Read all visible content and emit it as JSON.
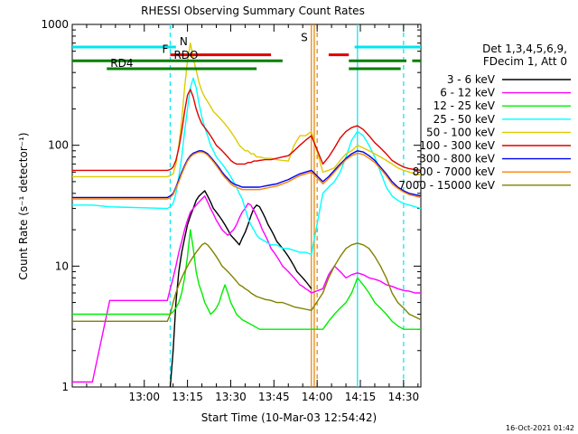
{
  "chart_data": {
    "type": "line",
    "title": "RHESSI Observing Summary Count Rates",
    "xlabel": "Start Time (10-Mar-03 12:54:42)",
    "ylabel": "Count Rate (s⁻¹ detector⁻¹)",
    "ylog": true,
    "ylim": [
      1,
      1000
    ],
    "xlim_minutes": [
      -25,
      96
    ],
    "yticks": [
      1,
      10,
      100,
      1000
    ],
    "ytick_labels": [
      "1",
      "10",
      "100",
      "1000"
    ],
    "xticks": [
      "13:00",
      "13:15",
      "13:30",
      "13:45",
      "14:00",
      "14:15",
      "14:30"
    ],
    "xtick_values": [
      0,
      15,
      30,
      45,
      60,
      75,
      90
    ],
    "legend_header": [
      "Det 1,3,4,5,6,9,",
      "FDecim 1, Att 0"
    ],
    "footer_date": "16-Oct-2021 01:42",
    "flags": [
      {
        "label": "N",
        "color": "#00e5ee",
        "y": 650,
        "segments": [
          [
            -25,
            11
          ],
          [
            73,
            96
          ]
        ]
      },
      {
        "label": "F",
        "color": "#e00000",
        "y": 560,
        "segments": [
          [
            9,
            44
          ],
          [
            64,
            71
          ]
        ]
      },
      {
        "label": "RDO",
        "color": "#008000",
        "y": 500,
        "segments": [
          [
            -25,
            48
          ],
          [
            71,
            91
          ],
          [
            93,
            96
          ]
        ]
      },
      {
        "label": "RD4",
        "color": "#008000",
        "y": 430,
        "segments": [
          [
            -13,
            39
          ],
          [
            71,
            89
          ]
        ]
      },
      {
        "label": "S",
        "color": "#e08000",
        "y": 700,
        "segments": []
      }
    ],
    "vlines": [
      {
        "x": 9,
        "color": "#00e5ee",
        "style": "dashed"
      },
      {
        "x": 58,
        "color": "#e08000",
        "style": "solid"
      },
      {
        "x": 59,
        "color": "#e08000",
        "style": "solid"
      },
      {
        "x": 60,
        "color": "#e08000",
        "style": "dashed"
      },
      {
        "x": 74,
        "color": "#00e5ee",
        "style": "solid"
      },
      {
        "x": 90,
        "color": "#00e5ee",
        "style": "dashed"
      }
    ],
    "series": [
      {
        "name": "3 - 6 keV",
        "color": "#000000",
        "x": [
          9,
          10,
          11,
          12,
          13,
          14,
          15,
          16,
          17,
          18,
          19,
          20,
          21,
          22,
          23,
          24,
          25,
          26,
          27,
          28,
          29,
          30,
          31,
          32,
          33,
          34,
          35,
          36,
          37,
          38,
          39,
          40,
          41,
          42,
          43,
          44,
          45,
          46,
          47,
          48,
          49,
          50,
          51,
          52,
          53,
          54,
          55,
          56,
          57,
          58
        ],
        "y": [
          1,
          2,
          5,
          9,
          13,
          17,
          22,
          26,
          30,
          35,
          38,
          40,
          42,
          38,
          34,
          30,
          28,
          26,
          24,
          22,
          20,
          18,
          17,
          16,
          15,
          17,
          19,
          22,
          26,
          30,
          32,
          31,
          28,
          25,
          22,
          20,
          18,
          16,
          15,
          14,
          13,
          12,
          11,
          10,
          9,
          8.5,
          8,
          7.5,
          7,
          6.5
        ]
      },
      {
        "name": "6 - 12 keV",
        "color": "#ff00ff",
        "x": [
          -25,
          -18,
          -12,
          8,
          9,
          10,
          11,
          12,
          13,
          14,
          15,
          16,
          17,
          18,
          19,
          20,
          21,
          22,
          23,
          24,
          25,
          26,
          27,
          28,
          29,
          30,
          31,
          32,
          33,
          34,
          35,
          36,
          37,
          38,
          39,
          40,
          41,
          42,
          43,
          44,
          45,
          46,
          47,
          48,
          49,
          50,
          51,
          52,
          53,
          54,
          55,
          56,
          57,
          58,
          62,
          64,
          66,
          68,
          70,
          72,
          74,
          76,
          78,
          80,
          82,
          84,
          86,
          88,
          90,
          92,
          94,
          96
        ],
        "y": [
          1.1,
          1.1,
          5.2,
          5.2,
          6.5,
          8,
          10,
          13,
          16,
          20,
          24,
          28,
          30,
          32,
          34,
          36,
          38,
          34,
          30,
          27,
          24,
          22,
          20,
          19,
          18,
          19,
          20,
          22,
          25,
          28,
          30,
          33,
          32,
          29,
          26,
          23,
          20,
          18,
          16,
          14,
          13,
          12,
          11,
          10,
          9.5,
          9,
          8.5,
          8,
          7.5,
          7,
          6.8,
          6.5,
          6.3,
          6,
          6.5,
          8.5,
          10,
          9,
          8,
          8.5,
          8.8,
          8.5,
          8,
          7.8,
          7.5,
          7,
          6.8,
          6.5,
          6.3,
          6.2,
          6,
          6
        ]
      },
      {
        "name": "12 - 25 keV",
        "color": "#00ee00",
        "x": [
          -25,
          -18,
          -12,
          8,
          9,
          10,
          11,
          12,
          13,
          14,
          15,
          16,
          17,
          18,
          19,
          20,
          21,
          22,
          23,
          24,
          25,
          26,
          27,
          28,
          29,
          30,
          31,
          32,
          33,
          34,
          35,
          36,
          37,
          38,
          39,
          40,
          42,
          44,
          46,
          48,
          50,
          52,
          54,
          56,
          58,
          62,
          64,
          66,
          68,
          70,
          72,
          74,
          76,
          78,
          80,
          82,
          84,
          86,
          88,
          90,
          92,
          94,
          96
        ],
        "y": [
          4,
          4,
          4,
          4,
          4,
          4.2,
          4.5,
          5,
          6,
          8,
          12,
          20,
          14,
          9,
          7,
          6,
          5,
          4.5,
          4,
          4.2,
          4.5,
          5,
          6,
          7,
          6,
          5,
          4.5,
          4,
          3.8,
          3.6,
          3.5,
          3.4,
          3.3,
          3.2,
          3.1,
          3,
          3,
          3,
          3,
          3,
          3,
          3,
          3,
          3,
          3,
          3,
          3.5,
          4,
          4.5,
          5,
          6,
          8,
          7,
          6,
          5,
          4.5,
          4,
          3.5,
          3.2,
          3,
          3,
          3,
          3
        ]
      },
      {
        "name": "25 - 50 keV",
        "color": "#00ffff",
        "x": [
          -25,
          -18,
          -12,
          8,
          9,
          10,
          11,
          12,
          13,
          14,
          15,
          16,
          17,
          18,
          19,
          20,
          21,
          22,
          23,
          24,
          25,
          26,
          27,
          28,
          29,
          30,
          31,
          32,
          33,
          34,
          35,
          36,
          37,
          38,
          39,
          40,
          42,
          44,
          46,
          48,
          50,
          52,
          54,
          56,
          58,
          62,
          64,
          66,
          68,
          70,
          72,
          74,
          76,
          78,
          80,
          82,
          84,
          86,
          88,
          90,
          92,
          94,
          96
        ],
        "y": [
          32,
          32,
          31,
          30,
          31,
          33,
          40,
          55,
          80,
          130,
          200,
          300,
          360,
          300,
          220,
          170,
          140,
          120,
          100,
          90,
          80,
          75,
          70,
          65,
          60,
          55,
          50,
          45,
          40,
          36,
          30,
          25,
          22,
          20,
          18,
          17,
          16,
          15,
          15,
          14,
          14,
          13.5,
          13,
          13,
          12.5,
          40,
          45,
          50,
          60,
          80,
          110,
          130,
          120,
          100,
          80,
          60,
          45,
          38,
          35,
          33,
          32,
          31,
          30
        ]
      },
      {
        "name": "50 - 100 keV",
        "color": "#ddcc00",
        "x": [
          -25,
          -18,
          -12,
          8,
          9,
          10,
          11,
          12,
          13,
          14,
          15,
          16,
          17,
          18,
          19,
          20,
          21,
          22,
          23,
          24,
          25,
          26,
          27,
          28,
          29,
          30,
          31,
          32,
          33,
          34,
          35,
          36,
          37,
          38,
          39,
          40,
          42,
          44,
          46,
          48,
          50,
          52,
          54,
          56,
          58,
          62,
          64,
          66,
          68,
          70,
          72,
          74,
          76,
          78,
          80,
          82,
          84,
          86,
          88,
          90,
          92,
          94,
          96
        ],
        "y": [
          55,
          55,
          55,
          55,
          56,
          58,
          70,
          100,
          160,
          300,
          500,
          700,
          520,
          420,
          330,
          280,
          250,
          230,
          210,
          190,
          180,
          170,
          160,
          150,
          140,
          130,
          120,
          110,
          100,
          95,
          90,
          90,
          85,
          85,
          80,
          80,
          78,
          78,
          76,
          75,
          74,
          100,
          120,
          120,
          130,
          60,
          62,
          65,
          75,
          85,
          90,
          100,
          95,
          90,
          85,
          80,
          75,
          70,
          65,
          62,
          60,
          58,
          57
        ]
      },
      {
        "name": "100 - 300 keV",
        "color": "#e00000",
        "x": [
          -25,
          -18,
          -12,
          8,
          9,
          10,
          11,
          12,
          13,
          14,
          15,
          16,
          17,
          18,
          19,
          20,
          21,
          22,
          23,
          24,
          25,
          26,
          27,
          28,
          29,
          30,
          31,
          32,
          33,
          34,
          35,
          36,
          37,
          38,
          39,
          40,
          42,
          44,
          46,
          48,
          50,
          52,
          54,
          56,
          58,
          62,
          64,
          66,
          68,
          70,
          72,
          74,
          76,
          78,
          80,
          82,
          84,
          86,
          88,
          90,
          92,
          94,
          96
        ],
        "y": [
          62,
          62,
          62,
          62,
          63,
          66,
          75,
          95,
          130,
          190,
          260,
          290,
          250,
          200,
          170,
          150,
          140,
          130,
          120,
          110,
          100,
          95,
          90,
          85,
          80,
          75,
          72,
          70,
          70,
          70,
          70,
          72,
          72,
          74,
          74,
          75,
          76,
          76,
          78,
          80,
          82,
          90,
          100,
          110,
          120,
          70,
          80,
          95,
          115,
          130,
          140,
          145,
          135,
          120,
          105,
          95,
          85,
          75,
          70,
          66,
          64,
          63,
          62
        ]
      },
      {
        "name": "300 - 800 keV",
        "color": "#0000ee",
        "x": [
          -25,
          -18,
          -12,
          8,
          9,
          10,
          11,
          12,
          13,
          14,
          15,
          16,
          17,
          18,
          19,
          20,
          21,
          22,
          23,
          24,
          25,
          26,
          27,
          28,
          29,
          30,
          31,
          32,
          33,
          34,
          35,
          36,
          37,
          38,
          39,
          40,
          42,
          44,
          46,
          48,
          50,
          52,
          54,
          56,
          58,
          62,
          64,
          66,
          68,
          70,
          72,
          74,
          76,
          78,
          80,
          82,
          84,
          86,
          88,
          90,
          92,
          94,
          96
        ],
        "y": [
          37,
          37,
          37,
          37,
          38,
          40,
          45,
          52,
          60,
          68,
          76,
          82,
          86,
          88,
          90,
          90,
          88,
          85,
          80,
          75,
          70,
          65,
          60,
          56,
          53,
          50,
          48,
          47,
          46,
          45,
          45,
          45,
          45,
          45,
          45,
          45,
          46,
          47,
          48,
          50,
          52,
          55,
          58,
          60,
          62,
          50,
          55,
          62,
          70,
          78,
          85,
          90,
          88,
          82,
          75,
          66,
          58,
          50,
          45,
          42,
          40,
          39,
          38
        ]
      },
      {
        "name": "800 - 7000 keV",
        "color": "#ff8000",
        "x": [
          -25,
          -18,
          -12,
          8,
          9,
          10,
          11,
          12,
          13,
          14,
          15,
          16,
          17,
          18,
          19,
          20,
          21,
          22,
          23,
          24,
          25,
          26,
          27,
          28,
          29,
          30,
          31,
          32,
          33,
          34,
          35,
          36,
          37,
          38,
          39,
          40,
          42,
          44,
          46,
          48,
          50,
          52,
          54,
          56,
          58,
          62,
          64,
          66,
          68,
          70,
          72,
          74,
          76,
          78,
          80,
          82,
          84,
          86,
          88,
          90,
          92,
          94,
          96
        ],
        "y": [
          36,
          36,
          36,
          36,
          37,
          39,
          44,
          50,
          58,
          66,
          74,
          80,
          84,
          86,
          88,
          88,
          86,
          83,
          78,
          73,
          68,
          63,
          58,
          54,
          51,
          48,
          46,
          45,
          44,
          43,
          43,
          43,
          43,
          43,
          43,
          43,
          44,
          45,
          46,
          48,
          50,
          53,
          56,
          58,
          60,
          48,
          53,
          60,
          68,
          76,
          82,
          86,
          84,
          78,
          72,
          64,
          56,
          48,
          44,
          41,
          39,
          38,
          37
        ]
      },
      {
        "name": "7000 - 15000 keV",
        "color": "#808000",
        "x": [
          -25,
          -18,
          -12,
          8,
          9,
          10,
          11,
          12,
          13,
          14,
          15,
          16,
          17,
          18,
          19,
          20,
          21,
          22,
          23,
          24,
          25,
          26,
          27,
          28,
          29,
          30,
          31,
          32,
          33,
          34,
          35,
          36,
          37,
          38,
          39,
          40,
          42,
          44,
          46,
          48,
          50,
          52,
          54,
          56,
          58,
          62,
          64,
          66,
          68,
          70,
          72,
          74,
          76,
          78,
          80,
          82,
          84,
          86,
          88,
          90,
          92,
          94,
          96
        ],
        "y": [
          3.5,
          3.5,
          3.5,
          3.5,
          4,
          5,
          6,
          7,
          8,
          9,
          10,
          11,
          12,
          13,
          14,
          15,
          15.5,
          15,
          14,
          13,
          12,
          11,
          10,
          9.5,
          9,
          8.5,
          8,
          7.5,
          7,
          6.8,
          6.5,
          6.3,
          6,
          5.8,
          5.6,
          5.5,
          5.3,
          5.2,
          5,
          5,
          4.8,
          4.6,
          4.5,
          4.4,
          4.3,
          6,
          8,
          10,
          12,
          14,
          15,
          15.5,
          15,
          14,
          12,
          10,
          8,
          6,
          5,
          4.5,
          4,
          3.8,
          3.6
        ]
      }
    ]
  }
}
